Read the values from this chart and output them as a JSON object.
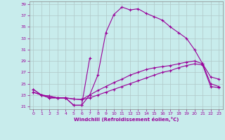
{
  "xlabel": "Windchill (Refroidissement éolien,°C)",
  "background_color": "#c8ecec",
  "line_color": "#990099",
  "grid_color": "#b0c8c8",
  "xlim": [
    -0.5,
    23.5
  ],
  "ylim": [
    20.5,
    39.5
  ],
  "xticks": [
    0,
    1,
    2,
    3,
    4,
    5,
    6,
    7,
    8,
    9,
    10,
    11,
    12,
    13,
    14,
    15,
    16,
    17,
    18,
    19,
    20,
    21,
    22,
    23
  ],
  "yticks": [
    21,
    23,
    25,
    27,
    29,
    31,
    33,
    35,
    37,
    39
  ],
  "curve1_x": [
    0,
    1,
    2,
    3,
    4,
    5,
    6,
    7,
    8,
    9,
    10,
    11,
    12,
    13,
    14,
    15,
    16,
    17,
    18,
    19,
    20,
    21,
    22,
    23
  ],
  "curve1_y": [
    24.0,
    23.0,
    22.5,
    22.5,
    22.5,
    21.2,
    21.2,
    23.0,
    26.5,
    34.0,
    37.2,
    38.5,
    38.0,
    38.2,
    37.4,
    36.8,
    36.2,
    35.0,
    34.0,
    33.0,
    31.0,
    28.5,
    25.0,
    24.5
  ],
  "curve2_x": [
    0,
    1,
    2,
    3,
    4,
    5,
    6,
    7,
    8,
    9,
    10,
    11,
    12,
    13,
    14,
    15,
    16,
    17,
    18,
    19,
    20,
    21,
    22,
    23
  ],
  "curve2_y": [
    24.0,
    23.0,
    22.5,
    22.5,
    22.5,
    21.2,
    21.2,
    29.5,
    26.5,
    34.0,
    37.2,
    38.5,
    38.0,
    38.2,
    37.4,
    36.8,
    36.2,
    35.0,
    34.0,
    33.0,
    31.0,
    28.5,
    25.0,
    24.5
  ],
  "curve3_x": [
    0,
    1,
    2,
    3,
    4,
    5,
    6,
    7,
    8,
    9,
    10,
    11,
    12,
    13,
    14,
    15,
    16,
    17,
    18,
    19,
    20,
    21,
    22,
    23
  ],
  "curve3_y": [
    23.5,
    23.0,
    22.8,
    22.5,
    22.5,
    22.3,
    22.2,
    22.5,
    23.0,
    23.5,
    24.0,
    24.5,
    25.0,
    25.5,
    26.0,
    26.5,
    27.0,
    27.3,
    27.8,
    28.2,
    28.5,
    28.3,
    24.5,
    24.3
  ],
  "curve4_x": [
    0,
    1,
    2,
    3,
    4,
    5,
    6,
    7,
    8,
    9,
    10,
    11,
    12,
    13,
    14,
    15,
    16,
    17,
    18,
    19,
    20,
    21,
    22,
    23
  ],
  "curve4_y": [
    23.5,
    23.0,
    22.8,
    22.5,
    22.5,
    22.3,
    22.2,
    23.0,
    23.8,
    24.5,
    25.2,
    25.8,
    26.5,
    27.0,
    27.5,
    27.8,
    28.0,
    28.2,
    28.5,
    28.8,
    29.0,
    28.5,
    26.2,
    25.8
  ]
}
